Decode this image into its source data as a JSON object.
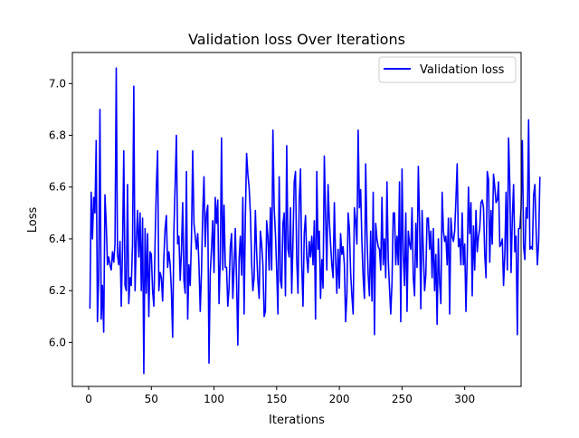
{
  "chart_data": {
    "type": "line",
    "title": "Validation loss Over Iterations",
    "xlabel": "Iterations",
    "ylabel": "Loss",
    "xlim": [
      -13,
      345
    ],
    "ylim": [
      5.83,
      7.12
    ],
    "xticks": [
      0,
      50,
      100,
      150,
      200,
      250,
      300
    ],
    "yticks": [
      6.0,
      6.2,
      6.4,
      6.6,
      6.8,
      7.0
    ],
    "xtick_labels": [
      "0",
      "50",
      "100",
      "150",
      "200",
      "250",
      "300"
    ],
    "ytick_labels": [
      "6.0",
      "6.2",
      "6.4",
      "6.6",
      "6.8",
      "7.0"
    ],
    "grid": false,
    "legend": {
      "position": "top-right",
      "entries": [
        "Validation loss"
      ]
    },
    "series": [
      {
        "name": "Validation loss",
        "color": "#0000ff",
        "x_start": 1,
        "x_step": 1,
        "values": [
          6.13,
          6.58,
          6.4,
          6.56,
          6.5,
          6.78,
          6.08,
          6.25,
          6.9,
          6.09,
          6.22,
          6.04,
          6.57,
          6.46,
          6.3,
          6.33,
          6.3,
          6.28,
          6.35,
          6.31,
          6.38,
          7.06,
          6.34,
          6.3,
          6.39,
          6.14,
          6.36,
          6.74,
          6.22,
          6.2,
          6.61,
          6.15,
          6.25,
          6.22,
          6.38,
          6.99,
          6.2,
          6.39,
          6.51,
          6.33,
          6.5,
          6.2,
          6.48,
          5.88,
          6.44,
          6.19,
          6.42,
          6.1,
          6.35,
          6.34,
          6.2,
          6.14,
          6.39,
          6.6,
          6.74,
          6.2,
          6.27,
          6.25,
          6.16,
          6.33,
          6.44,
          6.49,
          6.29,
          6.35,
          6.3,
          6.2,
          6.02,
          6.43,
          6.61,
          6.8,
          6.38,
          6.41,
          6.24,
          6.35,
          6.54,
          6.24,
          6.19,
          6.66,
          6.09,
          6.3,
          6.22,
          6.4,
          6.74,
          6.46,
          6.41,
          6.36,
          6.42,
          6.3,
          6.12,
          6.27,
          6.5,
          6.64,
          6.37,
          6.5,
          6.53,
          5.92,
          6.27,
          6.36,
          6.47,
          6.27,
          6.56,
          6.46,
          6.55,
          6.15,
          6.32,
          6.79,
          6.28,
          6.53,
          6.29,
          6.29,
          6.14,
          6.21,
          6.37,
          6.42,
          6.17,
          6.29,
          6.44,
          6.24,
          5.99,
          6.32,
          6.41,
          6.26,
          6.56,
          6.11,
          6.48,
          6.73,
          6.65,
          6.6,
          6.5,
          6.31,
          6.2,
          6.25,
          6.51,
          6.35,
          6.24,
          6.17,
          6.43,
          6.38,
          6.3,
          6.1,
          6.12,
          6.47,
          6.41,
          6.28,
          6.52,
          6.28,
          6.82,
          6.52,
          6.42,
          6.28,
          6.11,
          6.64,
          6.24,
          6.21,
          6.46,
          6.5,
          6.18,
          6.76,
          6.36,
          6.33,
          6.52,
          6.19,
          6.39,
          6.62,
          6.66,
          6.32,
          6.19,
          6.55,
          6.67,
          6.3,
          6.14,
          6.42,
          6.49,
          6.33,
          6.27,
          6.39,
          6.33,
          6.41,
          6.3,
          6.47,
          6.09,
          6.66,
          6.36,
          6.43,
          6.17,
          6.32,
          6.21,
          6.72,
          6.49,
          6.28,
          6.61,
          6.47,
          6.38,
          6.3,
          6.25,
          6.54,
          6.33,
          6.19,
          6.36,
          6.21,
          6.42,
          6.34,
          6.37,
          6.3,
          6.08,
          6.18,
          6.5,
          6.44,
          6.27,
          6.18,
          6.11,
          6.52,
          6.47,
          6.38,
          6.82,
          6.52,
          6.59,
          6.39,
          6.25,
          6.17,
          6.69,
          6.42,
          6.26,
          6.18,
          6.43,
          6.16,
          6.58,
          6.03,
          6.46,
          6.4,
          6.37,
          6.36,
          6.28,
          6.56,
          6.3,
          6.4,
          6.25,
          6.62,
          6.32,
          6.21,
          6.11,
          6.23,
          6.5,
          6.5,
          6.3,
          6.41,
          6.3,
          6.62,
          6.08,
          6.67,
          6.34,
          6.22,
          6.5,
          6.12,
          6.43,
          6.38,
          6.36,
          6.52,
          6.25,
          6.18,
          6.46,
          6.29,
          6.68,
          6.46,
          6.13,
          6.51,
          6.35,
          6.2,
          6.26,
          6.48,
          6.48,
          6.36,
          6.43,
          6.25,
          6.44,
          6.2,
          6.34,
          6.07,
          6.4,
          6.23,
          6.15,
          6.58,
          6.43,
          6.39,
          6.41,
          6.3,
          6.48,
          6.11,
          6.48,
          6.41,
          6.39,
          6.43,
          6.55,
          6.69,
          6.37,
          6.4,
          6.3,
          6.5,
          6.3,
          6.38,
          6.12,
          6.33,
          6.6,
          6.42,
          6.54,
          6.18,
          6.45,
          6.28,
          6.51,
          6.35,
          6.41,
          6.44,
          6.54,
          6.55,
          6.52,
          6.34,
          6.25,
          6.66,
          6.63,
          6.31,
          6.51,
          6.38,
          6.65,
          6.6,
          6.54,
          6.55,
          6.62,
          6.37,
          6.38,
          6.4,
          6.22,
          6.34,
          6.58,
          6.28,
          6.79,
          6.61,
          6.27,
          6.48,
          6.61,
          6.35,
          6.41,
          6.03,
          6.44,
          6.44,
          6.52,
          6.78,
          6.37,
          6.32,
          6.52,
          6.48,
          6.86,
          6.36,
          6.37,
          6.36,
          6.57,
          6.61,
          6.43,
          6.3,
          6.39,
          6.64
        ]
      }
    ]
  }
}
